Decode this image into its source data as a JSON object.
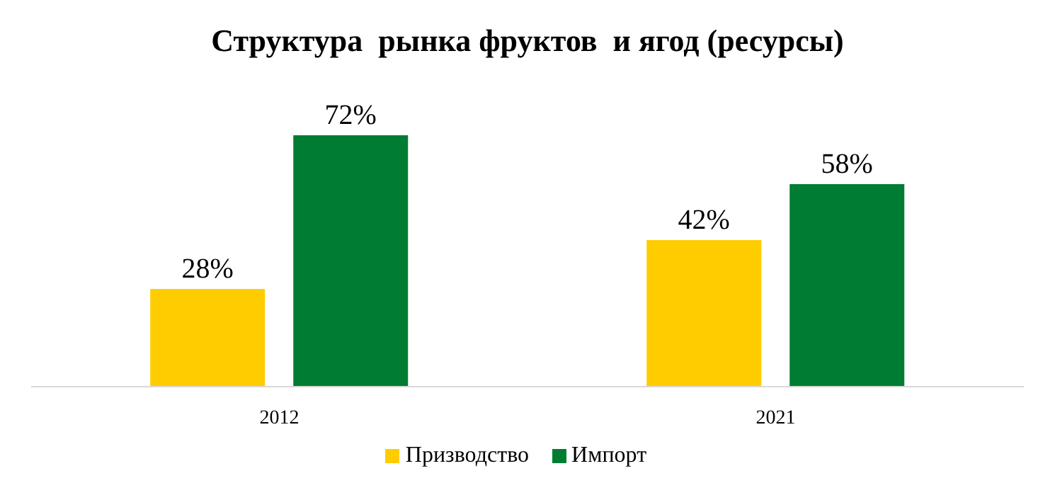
{
  "chart_data": {
    "type": "bar",
    "title": "Структура  рынка фруктов  и ягод (ресурсы)",
    "categories": [
      "2012",
      "2021"
    ],
    "series": [
      {
        "name": "Призводство",
        "color": "#ffcc00",
        "values": [
          28,
          42
        ],
        "value_labels": [
          "28%",
          "42%"
        ]
      },
      {
        "name": "Импорт",
        "color": "#007d32",
        "values": [
          72,
          58
        ],
        "value_labels": [
          "72%",
          "58%"
        ]
      }
    ],
    "legend": "bottom",
    "grid": false
  }
}
